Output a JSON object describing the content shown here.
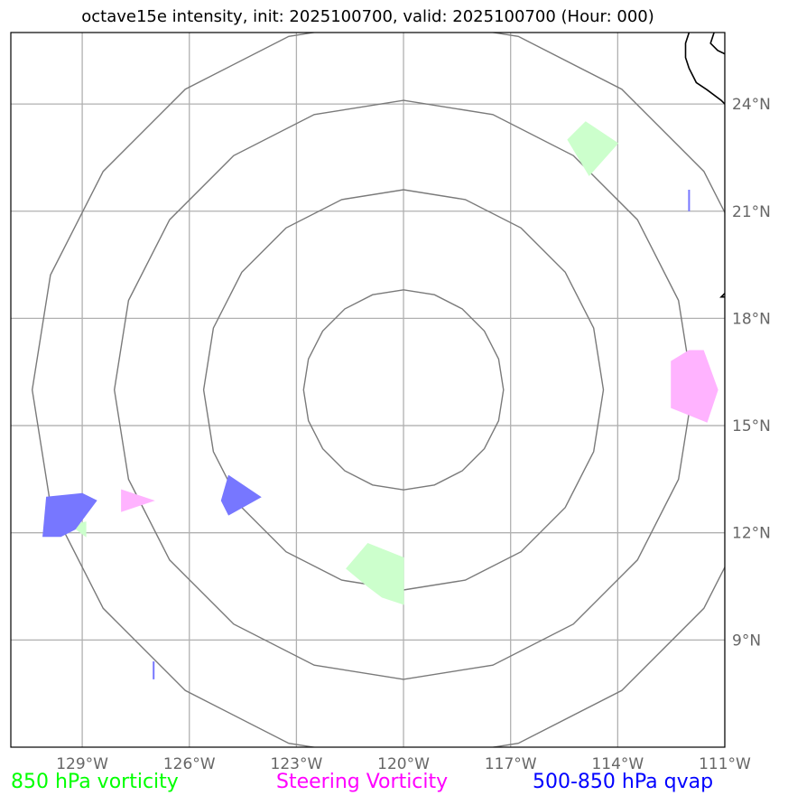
{
  "title": "octave15e intensity, init: 2025100700, valid: 2025100700 (Hour: 000)",
  "legend": [
    {
      "label": "850 hPa vorticity",
      "color": "#00ff00"
    },
    {
      "label": "Steering Vorticity",
      "color": "#ff00ff"
    },
    {
      "label": "500-850 hPa qvap",
      "color": "#0000ff"
    }
  ],
  "chart_data": {
    "type": "map",
    "xlim": [
      -131,
      -111
    ],
    "ylim": [
      6,
      26
    ],
    "x_ticks": [
      {
        "value": -129,
        "label": "129°W"
      },
      {
        "value": -126,
        "label": "126°W"
      },
      {
        "value": -123,
        "label": "123°W"
      },
      {
        "value": -120,
        "label": "120°W"
      },
      {
        "value": -117,
        "label": "117°W"
      },
      {
        "value": -114,
        "label": "114°W"
      },
      {
        "value": -111,
        "label": "111°W"
      }
    ],
    "y_ticks": [
      {
        "value": 9,
        "label": "9°N"
      },
      {
        "value": 12,
        "label": "12°N"
      },
      {
        "value": 15,
        "label": "15°N"
      },
      {
        "value": 18,
        "label": "18°N"
      },
      {
        "value": 21,
        "label": "21°N"
      },
      {
        "value": 24,
        "label": "24°N"
      }
    ],
    "grid": true,
    "center": {
      "lon": -120,
      "lat": 16
    },
    "range_rings_deg": [
      2.8,
      5.6,
      8.1,
      10.4
    ],
    "shapes": [
      {
        "kind": "850 hPa vorticity",
        "color": "#ccffcc",
        "points": [
          [
            -115.4,
            23.0
          ],
          [
            -114.9,
            23.5
          ],
          [
            -114.0,
            22.9
          ],
          [
            -114.8,
            22.0
          ]
        ]
      },
      {
        "kind": "850 hPa vorticity",
        "color": "#ccffcc",
        "points": [
          [
            -121.6,
            11.0
          ],
          [
            -121.0,
            11.7
          ],
          [
            -120.0,
            11.3
          ],
          [
            -120.0,
            10.0
          ],
          [
            -120.6,
            10.2
          ],
          [
            -121.0,
            10.5
          ]
        ]
      },
      {
        "kind": "850 hPa vorticity",
        "color": "#ccffcc",
        "points": [
          [
            -129.3,
            12.2
          ],
          [
            -128.9,
            12.3
          ],
          [
            -128.9,
            11.9
          ]
        ]
      },
      {
        "kind": "Steering Vorticity",
        "color": "#ffb3ff",
        "points": [
          [
            -112.5,
            16.8
          ],
          [
            -112.0,
            17.1
          ],
          [
            -111.6,
            17.1
          ],
          [
            -111.2,
            16.0
          ],
          [
            -111.5,
            15.1
          ],
          [
            -112.5,
            15.5
          ]
        ]
      },
      {
        "kind": "Steering Vorticity",
        "color": "#ffb3ff",
        "points": [
          [
            -127.9,
            13.2
          ],
          [
            -127.0,
            12.9
          ],
          [
            -127.9,
            12.6
          ]
        ]
      },
      {
        "kind": "500-850 hPa qvap",
        "color": "#7777ff",
        "points": [
          [
            -130.0,
            13.0
          ],
          [
            -129.0,
            13.1
          ],
          [
            -128.6,
            12.9
          ],
          [
            -129.2,
            12.1
          ],
          [
            -129.6,
            11.9
          ],
          [
            -130.1,
            11.9
          ]
        ]
      },
      {
        "kind": "500-850 hPa qvap",
        "color": "#7777ff",
        "points": [
          [
            -124.9,
            13.6
          ],
          [
            -124.0,
            13.0
          ],
          [
            -124.9,
            12.5
          ],
          [
            -125.1,
            12.9
          ]
        ]
      }
    ],
    "lines": [
      {
        "kind": "500-850 hPa qvap",
        "color": "#7777ff",
        "points": [
          [
            -112.0,
            21.6
          ],
          [
            -112.0,
            21.0
          ]
        ]
      },
      {
        "kind": "500-850 hPa qvap",
        "color": "#7777ff",
        "points": [
          [
            -127.0,
            8.4
          ],
          [
            -127.0,
            7.9
          ]
        ]
      }
    ],
    "coastlines": [
      [
        [
          -112.0,
          26.0
        ],
        [
          -112.1,
          25.7
        ],
        [
          -112.1,
          25.3
        ],
        [
          -112.0,
          25.0
        ],
        [
          -111.8,
          24.6
        ],
        [
          -111.5,
          24.4
        ],
        [
          -111.1,
          24.1
        ],
        [
          -111.0,
          24.0
        ]
      ],
      [
        [
          -111.3,
          26.0
        ],
        [
          -111.4,
          25.7
        ],
        [
          -111.2,
          25.5
        ],
        [
          -111.0,
          25.4
        ]
      ],
      [
        [
          -111.0,
          18.7
        ],
        [
          -111.1,
          18.6
        ],
        [
          -111.0,
          18.6
        ]
      ]
    ]
  }
}
